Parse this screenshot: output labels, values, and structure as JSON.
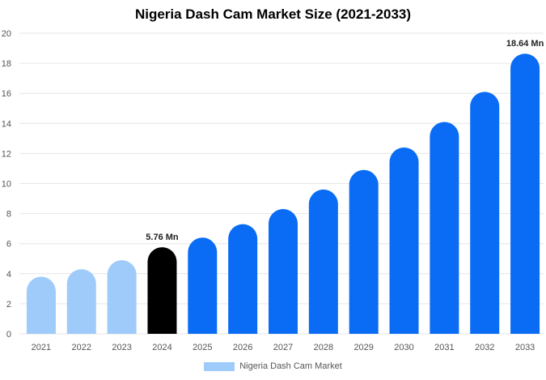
{
  "chart_data": {
    "type": "bar",
    "title": "Nigeria Dash Cam Market Size (2021-2033)",
    "categories": [
      "2021",
      "2022",
      "2023",
      "2024",
      "2025",
      "2026",
      "2027",
      "2028",
      "2029",
      "2030",
      "2031",
      "2032",
      "2033"
    ],
    "series": [
      {
        "name": "Nigeria Dash Cam Market",
        "values": [
          3.8,
          4.3,
          4.9,
          5.76,
          6.4,
          7.3,
          8.3,
          9.6,
          10.9,
          12.4,
          14.1,
          16.1,
          18.64
        ]
      }
    ],
    "data_labels": {
      "2024": "5.76 Mn",
      "2033": "18.64 Mn"
    },
    "ylim": [
      0,
      20
    ],
    "yticks": [
      0,
      2,
      4,
      6,
      8,
      10,
      12,
      14,
      16,
      18,
      20
    ],
    "grid": true,
    "legend_position": "bottom",
    "colors": {
      "historical": "#9fcbfb",
      "base_year": "#000000",
      "forecast": "#0a6cf5",
      "grid": "#e6e6e6",
      "axis_text": "#555555"
    },
    "bar_color_groups": [
      "historical",
      "historical",
      "historical",
      "base_year",
      "forecast",
      "forecast",
      "forecast",
      "forecast",
      "forecast",
      "forecast",
      "forecast",
      "forecast",
      "forecast"
    ]
  }
}
